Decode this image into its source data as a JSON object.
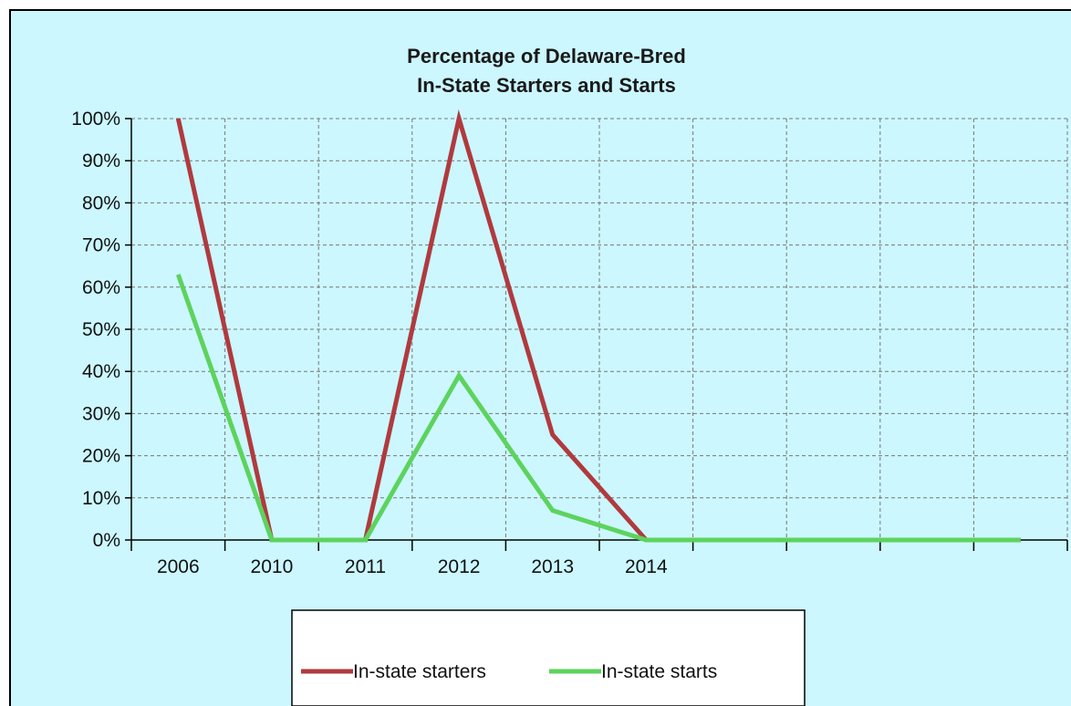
{
  "colors": {
    "background": "#ccf7ff",
    "in_state_starters": "#b03a3e",
    "in_state_starts": "#5dd35d"
  },
  "chart_data": {
    "type": "line",
    "title": "Percentage of Delaware-Bred In-State Starters and Starts",
    "title_lines": [
      "Percentage of Delaware-Bred",
      "In-State Starters and Starts"
    ],
    "xlabel": "",
    "ylabel": "",
    "categories": [
      "2006",
      "2010",
      "2011",
      "2012",
      "2013",
      "2014",
      "",
      "",
      "",
      ""
    ],
    "y_ticks": [
      "0%",
      "10%",
      "20%",
      "30%",
      "40%",
      "50%",
      "60%",
      "70%",
      "80%",
      "90%",
      "100%"
    ],
    "ylim": [
      0,
      100
    ],
    "grid": true,
    "legend_position": "bottom",
    "series": [
      {
        "name": "In-state starters",
        "values": [
          100,
          0,
          0,
          100,
          25,
          0,
          0,
          0,
          0,
          0
        ]
      },
      {
        "name": "In-state starts",
        "values": [
          63,
          0,
          0,
          39,
          7,
          0,
          0,
          0,
          0,
          0
        ]
      }
    ]
  }
}
